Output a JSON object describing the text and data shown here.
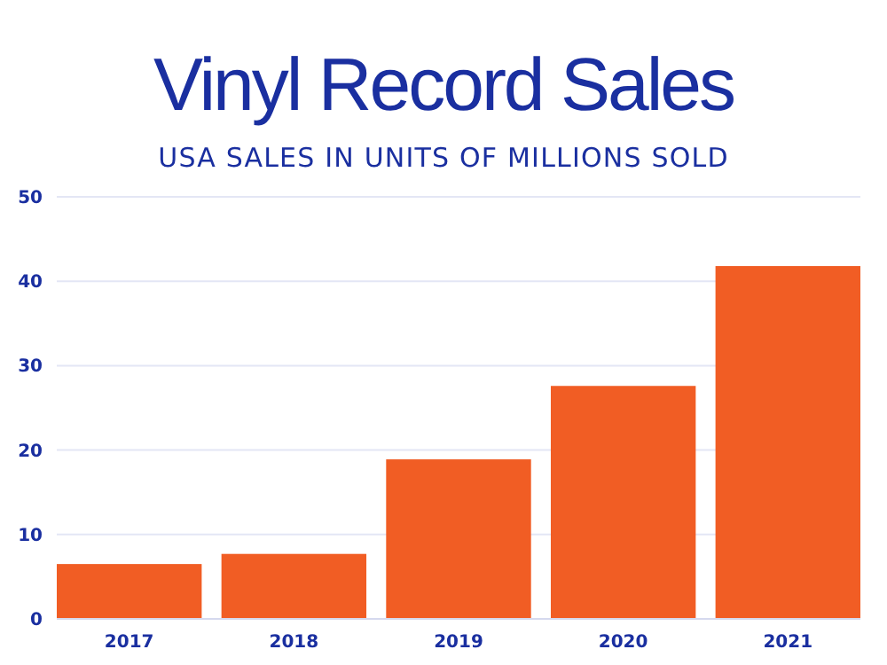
{
  "chart_data": {
    "type": "bar",
    "title": "Vinyl Record Sales",
    "subtitle": "USA SALES IN UNITS OF MILLIONS SOLD",
    "categories": [
      "2017",
      "2018",
      "2019",
      "2020",
      "2021"
    ],
    "values": [
      6.5,
      7.7,
      18.9,
      27.6,
      41.8
    ],
    "color": "#f15d24",
    "ylim": [
      0,
      50
    ],
    "yticks": [
      0,
      10,
      20,
      30,
      40,
      50
    ],
    "grid": "y"
  }
}
